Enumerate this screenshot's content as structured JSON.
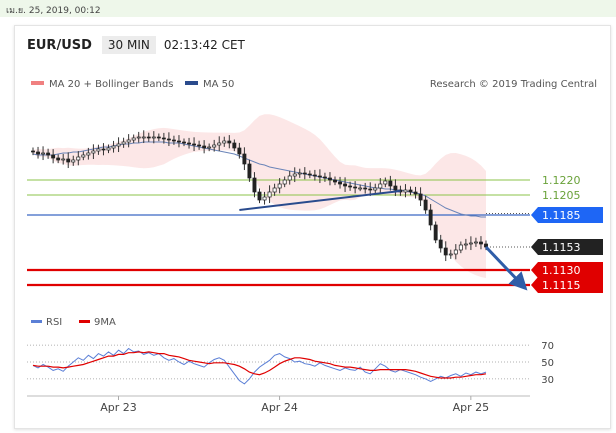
{
  "date_bar": "เม.ย. 25, 2019, 00:12",
  "header": {
    "pair": "EUR/USD",
    "timeframe": "30 MIN",
    "clock": "02:13:42 CET"
  },
  "legend": {
    "ma20": "MA 20 + Bollinger Bands",
    "ma50": "MA 50",
    "credit": "Research © 2019 Trading Central"
  },
  "rsi_legend": {
    "rsi": "RSI",
    "ma9": "9MA"
  },
  "colors": {
    "green_level": "#8bc34a",
    "blue_level": "#1e66f5",
    "red_level": "#e00000",
    "price_tag": "#222222",
    "trend": "#2a4b8d",
    "bollinger": "#f9c9c9",
    "arrow": "#2f5da8"
  },
  "chart_data": {
    "type": "candlestick",
    "price_range": [
      1.1095,
      1.1305
    ],
    "levels": [
      {
        "value": 1.122,
        "label": "1.1220",
        "kind": "resistance-green"
      },
      {
        "value": 1.1205,
        "label": "1.1205",
        "kind": "resistance-green"
      },
      {
        "value": 1.1185,
        "label": "1.1185",
        "kind": "pivot-blue"
      },
      {
        "value": 1.1153,
        "label": "1.1153",
        "kind": "last-price"
      },
      {
        "value": 1.113,
        "label": "1.1130",
        "kind": "support-red"
      },
      {
        "value": 1.1115,
        "label": "1.1115",
        "kind": "support-red"
      }
    ],
    "x_ticks": [
      "Apr 23",
      "Apr 24",
      "Apr 25"
    ],
    "close": [
      1.1248,
      1.1246,
      1.1247,
      1.1245,
      1.1242,
      1.124,
      1.1241,
      1.1238,
      1.124,
      1.1243,
      1.1245,
      1.1247,
      1.1249,
      1.1251,
      1.125,
      1.1252,
      1.1254,
      1.1256,
      1.1258,
      1.126,
      1.1262,
      1.1263,
      1.1263,
      1.1262,
      1.1263,
      1.1262,
      1.1261,
      1.126,
      1.1259,
      1.1258,
      1.1257,
      1.1256,
      1.1255,
      1.1254,
      1.1252,
      1.1253,
      1.1255,
      1.1257,
      1.1259,
      1.1257,
      1.1252,
      1.1246,
      1.1236,
      1.1222,
      1.1208,
      1.12,
      1.1203,
      1.1208,
      1.1212,
      1.1216,
      1.122,
      1.1224,
      1.1226,
      1.1227,
      1.1226,
      1.1225,
      1.1224,
      1.1223,
      1.1222,
      1.122,
      1.1218,
      1.1216,
      1.1214,
      1.1213,
      1.1212,
      1.1212,
      1.1211,
      1.121,
      1.1212,
      1.1216,
      1.1219,
      1.1214,
      1.121,
      1.1208,
      1.121,
      1.1208,
      1.1206,
      1.12,
      1.119,
      1.1175,
      1.116,
      1.1152,
      1.1145,
      1.1146,
      1.115,
      1.1155,
      1.1156,
      1.1157,
      1.1158,
      1.1156,
      1.1153
    ],
    "ma50": [
      1.1246,
      1.1245,
      1.1245,
      1.1245,
      1.1245,
      1.1246,
      1.1247,
      1.1247,
      1.1248,
      1.1248,
      1.1249,
      1.125,
      1.1251,
      1.1252,
      1.1253,
      1.1253,
      1.1254,
      1.1255,
      1.1256,
      1.1256,
      1.1257,
      1.1257,
      1.1258,
      1.1258,
      1.1258,
      1.1258,
      1.1258,
      1.1257,
      1.1257,
      1.1257,
      1.1256,
      1.1255,
      1.1254,
      1.1253,
      1.1252,
      1.1251,
      1.125,
      1.1249,
      1.1248,
      1.1247,
      1.1246,
      1.1244,
      1.1242,
      1.124,
      1.1238,
      1.1236,
      1.1235,
      1.1233,
      1.1232,
      1.1231,
      1.123,
      1.1229,
      1.1228,
      1.1227,
      1.1226,
      1.1225,
      1.1224,
      1.1223,
      1.1222,
      1.1221,
      1.122,
      1.1219,
      1.1218,
      1.1217,
      1.1216,
      1.1215,
      1.1214,
      1.1213,
      1.1212,
      1.1212,
      1.1211,
      1.1211,
      1.121,
      1.121,
      1.1209,
      1.1208,
      1.1207,
      1.1206,
      1.1204,
      1.1201,
      1.1198,
      1.1195,
      1.1192,
      1.119,
      1.1188,
      1.1186,
      1.1185,
      1.1184,
      1.1184,
      1.1183,
      1.1183
    ],
    "trendline": {
      "from": [
        41,
        1.119
      ],
      "to": [
        73,
        1.1209
      ]
    },
    "projection": {
      "from": [
        90,
        1.1153
      ],
      "to": [
        97,
        1.1116
      ]
    },
    "rsi": {
      "levels": [
        70,
        50,
        30
      ],
      "range": [
        18,
        82
      ],
      "rsi": [
        46,
        43,
        47,
        44,
        40,
        42,
        39,
        45,
        50,
        55,
        52,
        58,
        54,
        60,
        57,
        62,
        58,
        64,
        60,
        66,
        62,
        63,
        59,
        61,
        58,
        60,
        55,
        52,
        54,
        50,
        47,
        51,
        48,
        46,
        44,
        49,
        53,
        55,
        52,
        44,
        36,
        28,
        24,
        30,
        38,
        44,
        48,
        52,
        58,
        60,
        56,
        54,
        50,
        51,
        48,
        47,
        45,
        49,
        46,
        44,
        42,
        40,
        43,
        41,
        40,
        44,
        38,
        36,
        42,
        48,
        45,
        40,
        38,
        41,
        39,
        37,
        35,
        32,
        30,
        27,
        30,
        33,
        31,
        34,
        36,
        33,
        37,
        35,
        38,
        36,
        38
      ],
      "ma9": [
        46,
        45,
        45,
        45,
        44,
        44,
        43,
        44,
        45,
        46,
        47,
        49,
        51,
        53,
        55,
        57,
        57,
        59,
        59,
        61,
        61,
        62,
        61,
        62,
        61,
        60,
        60,
        58,
        57,
        56,
        54,
        52,
        51,
        50,
        49,
        48,
        49,
        49,
        49,
        48,
        47,
        45,
        42,
        38,
        36,
        35,
        37,
        40,
        44,
        48,
        51,
        53,
        55,
        55,
        54,
        53,
        51,
        50,
        49,
        48,
        46,
        45,
        44,
        44,
        43,
        42,
        41,
        40,
        40,
        41,
        41,
        41,
        41,
        41,
        41,
        40,
        39,
        37,
        35,
        33,
        32,
        31,
        31,
        31,
        32,
        32,
        33,
        34,
        35,
        35,
        36
      ]
    }
  }
}
